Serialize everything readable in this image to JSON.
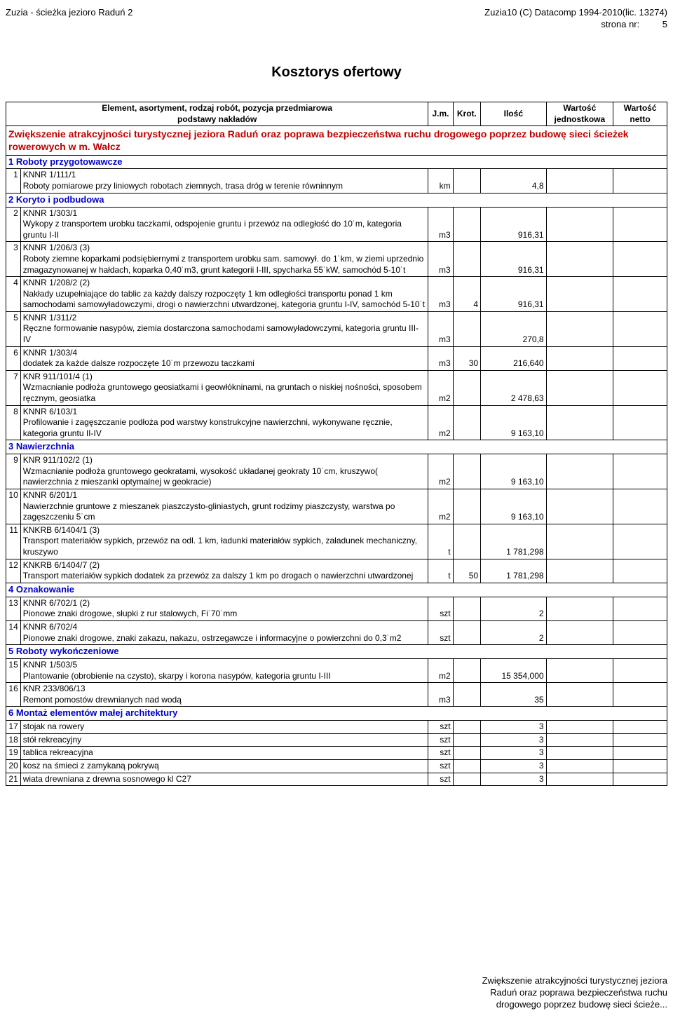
{
  "header": {
    "left": "Zuzia - ścieżka jezioro Raduń 2",
    "right_line1": "Zuzia10 (C) Datacomp 1994-2010(lic. 13274)",
    "right_line2_label": "strona nr:",
    "right_line2_value": "5"
  },
  "title": "Kosztorys ofertowy",
  "columns": {
    "desc_line1": "Element, asortyment, rodzaj robót, pozycja przedmiarowa",
    "desc_line2": "podstawy nakładów",
    "jm": "J.m.",
    "krot": "Krot.",
    "ilosc": "Ilość",
    "wj_line1": "Wartość",
    "wj_line2": "jednostkowa",
    "wn_line1": "Wartość",
    "wn_line2": "netto"
  },
  "project_title": "Zwiększenie atrakcyjności turystycznej jeziora Raduń oraz poprawa bezpieczeństwa ruchu drogowego poprzez budowę sieci ścieżek rowerowych w m. Wałcz",
  "sections": [
    {
      "num": "1",
      "title": "Roboty przygotowawcze",
      "items": [
        {
          "num": "1",
          "code": "KNNR 1/111/1",
          "text": "Roboty pomiarowe przy liniowych robotach ziemnych, trasa dróg w terenie równinnym",
          "jm": "km",
          "krot": "",
          "ilosc": "4,8"
        }
      ]
    },
    {
      "num": "2",
      "title": "Koryto i podbudowa",
      "items": [
        {
          "num": "2",
          "code": "KNNR 1/303/1",
          "text": "Wykopy z transportem urobku taczkami, odspojenie gruntu i przewóz na odległość do 10˙m, kategoria gruntu I-II",
          "jm": "m3",
          "krot": "",
          "ilosc": "916,31"
        },
        {
          "num": "3",
          "code": "KNNR 1/206/3 (3)",
          "text": "Roboty ziemne koparkami podsiębiernymi z transportem urobku sam. samowył. do 1˙km, w ziemi uprzednio zmagazynowanej w hałdach, koparka 0,40˙m3, grunt kategorii I-III, spycharka 55˙kW, samochód 5-10˙t",
          "jm": "m3",
          "krot": "",
          "ilosc": "916,31"
        },
        {
          "num": "4",
          "code": "KNNR 1/208/2 (2)",
          "text": "Nakłady uzupełniające do tablic za każdy dalszy rozpoczęty 1 km odległości transportu ponad 1 km samochodami samowyładowczymi, drogi o nawierzchni utwardzonej, kategoria gruntu I-IV, samochód 5-10˙t",
          "jm": "m3",
          "krot": "4",
          "ilosc": "916,31"
        },
        {
          "num": "5",
          "code": "KNNR 1/311/2",
          "text": "Ręczne formowanie nasypów, ziemia dostarczona samochodami samowyładowczymi, kategoria gruntu III-IV",
          "jm": "m3",
          "krot": "",
          "ilosc": "270,8"
        },
        {
          "num": "6",
          "code": "KNNR 1/303/4",
          "text": "dodatek za każde dalsze rozpoczęte 10˙m przewozu taczkami",
          "jm": "m3",
          "krot": "30",
          "ilosc": "216,640"
        },
        {
          "num": "7",
          "code": "KNR 911/101/4 (1)",
          "text": "Wzmacnianie podłoża gruntowego geosiatkami i geowłókninami, na gruntach o niskiej nośności, sposobem ręcznym, geosiatka",
          "jm": "m2",
          "krot": "",
          "ilosc": "2 478,63"
        },
        {
          "num": "8",
          "code": "KNNR 6/103/1",
          "text": "Profilowanie i zagęszczanie podłoża pod warstwy konstrukcyjne nawierzchni, wykonywane ręcznie, kategoria gruntu II-IV",
          "jm": "m2",
          "krot": "",
          "ilosc": "9 163,10"
        }
      ]
    },
    {
      "num": "3",
      "title": "Nawierzchnia",
      "items": [
        {
          "num": "9",
          "code": "KNR 911/102/2 (1)",
          "text": "Wzmacnianie podłoża gruntowego geokratami, wysokość układanej geokraty 10˙cm, kruszywo( nawierzchnia z mieszanki optymalnej w geokracie)",
          "jm": "m2",
          "krot": "",
          "ilosc": "9 163,10"
        },
        {
          "num": "10",
          "code": "KNNR 6/201/1",
          "text": "Nawierzchnie gruntowe z mieszanek piaszczysto-gliniastych, grunt rodzimy piaszczysty, warstwa po zagęszczeniu 5˙cm",
          "jm": "m2",
          "krot": "",
          "ilosc": "9 163,10"
        },
        {
          "num": "11",
          "code": "KNKRB 6/1404/1 (3)",
          "text": "Transport materiałów sypkich, przewóz na odl. 1 km, ładunki materiałów sypkich, załadunek mechaniczny, kruszywo",
          "jm": "t",
          "krot": "",
          "ilosc": "1 781,298"
        },
        {
          "num": "12",
          "code": "KNKRB 6/1404/7 (2)",
          "text": "Transport materiałów sypkich  dodatek za przewóz za dalszy 1 km po drogach o nawierzchni utwardzonej",
          "jm": "t",
          "krot": "50",
          "ilosc": "1 781,298"
        }
      ]
    },
    {
      "num": "4",
      "title": "Oznakowanie",
      "items": [
        {
          "num": "13",
          "code": "KNNR 6/702/1 (2)",
          "text": "Pionowe znaki drogowe, słupki z rur stalowych, Fi˙70˙mm",
          "jm": "szt",
          "krot": "",
          "ilosc": "2"
        },
        {
          "num": "14",
          "code": "KNNR 6/702/4",
          "text": "Pionowe znaki drogowe, znaki zakazu, nakazu, ostrzegawcze i informacyjne o powierzchni do 0,3˙m2",
          "jm": "szt",
          "krot": "",
          "ilosc": "2"
        }
      ]
    },
    {
      "num": "5",
      "title": "Roboty wykończeniowe",
      "items": [
        {
          "num": "15",
          "code": "KNNR 1/503/5",
          "text": "Plantowanie (obrobienie na czysto), skarpy i korona nasypów, kategoria gruntu I-III",
          "jm": "m2",
          "krot": "",
          "ilosc": "15 354,000"
        },
        {
          "num": "16",
          "code": "KNR 233/806/13",
          "text": "Remont pomostów drewnianych nad wodą",
          "jm": "m3",
          "krot": "",
          "ilosc": "35"
        }
      ]
    },
    {
      "num": "6",
      "title": "Montaż elementów małej architektury",
      "items": [
        {
          "num": "17",
          "code": "",
          "text": "stojak na rowery",
          "jm": "szt",
          "krot": "",
          "ilosc": "3"
        },
        {
          "num": "18",
          "code": "",
          "text": "stół rekreacyjny",
          "jm": "szt",
          "krot": "",
          "ilosc": "3"
        },
        {
          "num": "19",
          "code": "",
          "text": "tablica rekreacyjna",
          "jm": "szt",
          "krot": "",
          "ilosc": "3"
        },
        {
          "num": "20",
          "code": "",
          "text": "kosz na śmieci z zamykaną pokrywą",
          "jm": "szt",
          "krot": "",
          "ilosc": "3"
        },
        {
          "num": "21",
          "code": "",
          "text": "wiata drewniana  z drewna sosnowego kl C27",
          "jm": "szt",
          "krot": "",
          "ilosc": "3"
        }
      ]
    }
  ],
  "footer": {
    "line1": "Zwiększenie atrakcyjności turystycznej jeziora",
    "line2": "Raduń oraz poprawa bezpieczeństwa ruchu",
    "line3": "drogowego poprzez budowę sieci ścieże..."
  },
  "colors": {
    "project": "#c00000",
    "section": "#0000cc",
    "text": "#000000",
    "border": "#000000",
    "background": "#ffffff"
  }
}
